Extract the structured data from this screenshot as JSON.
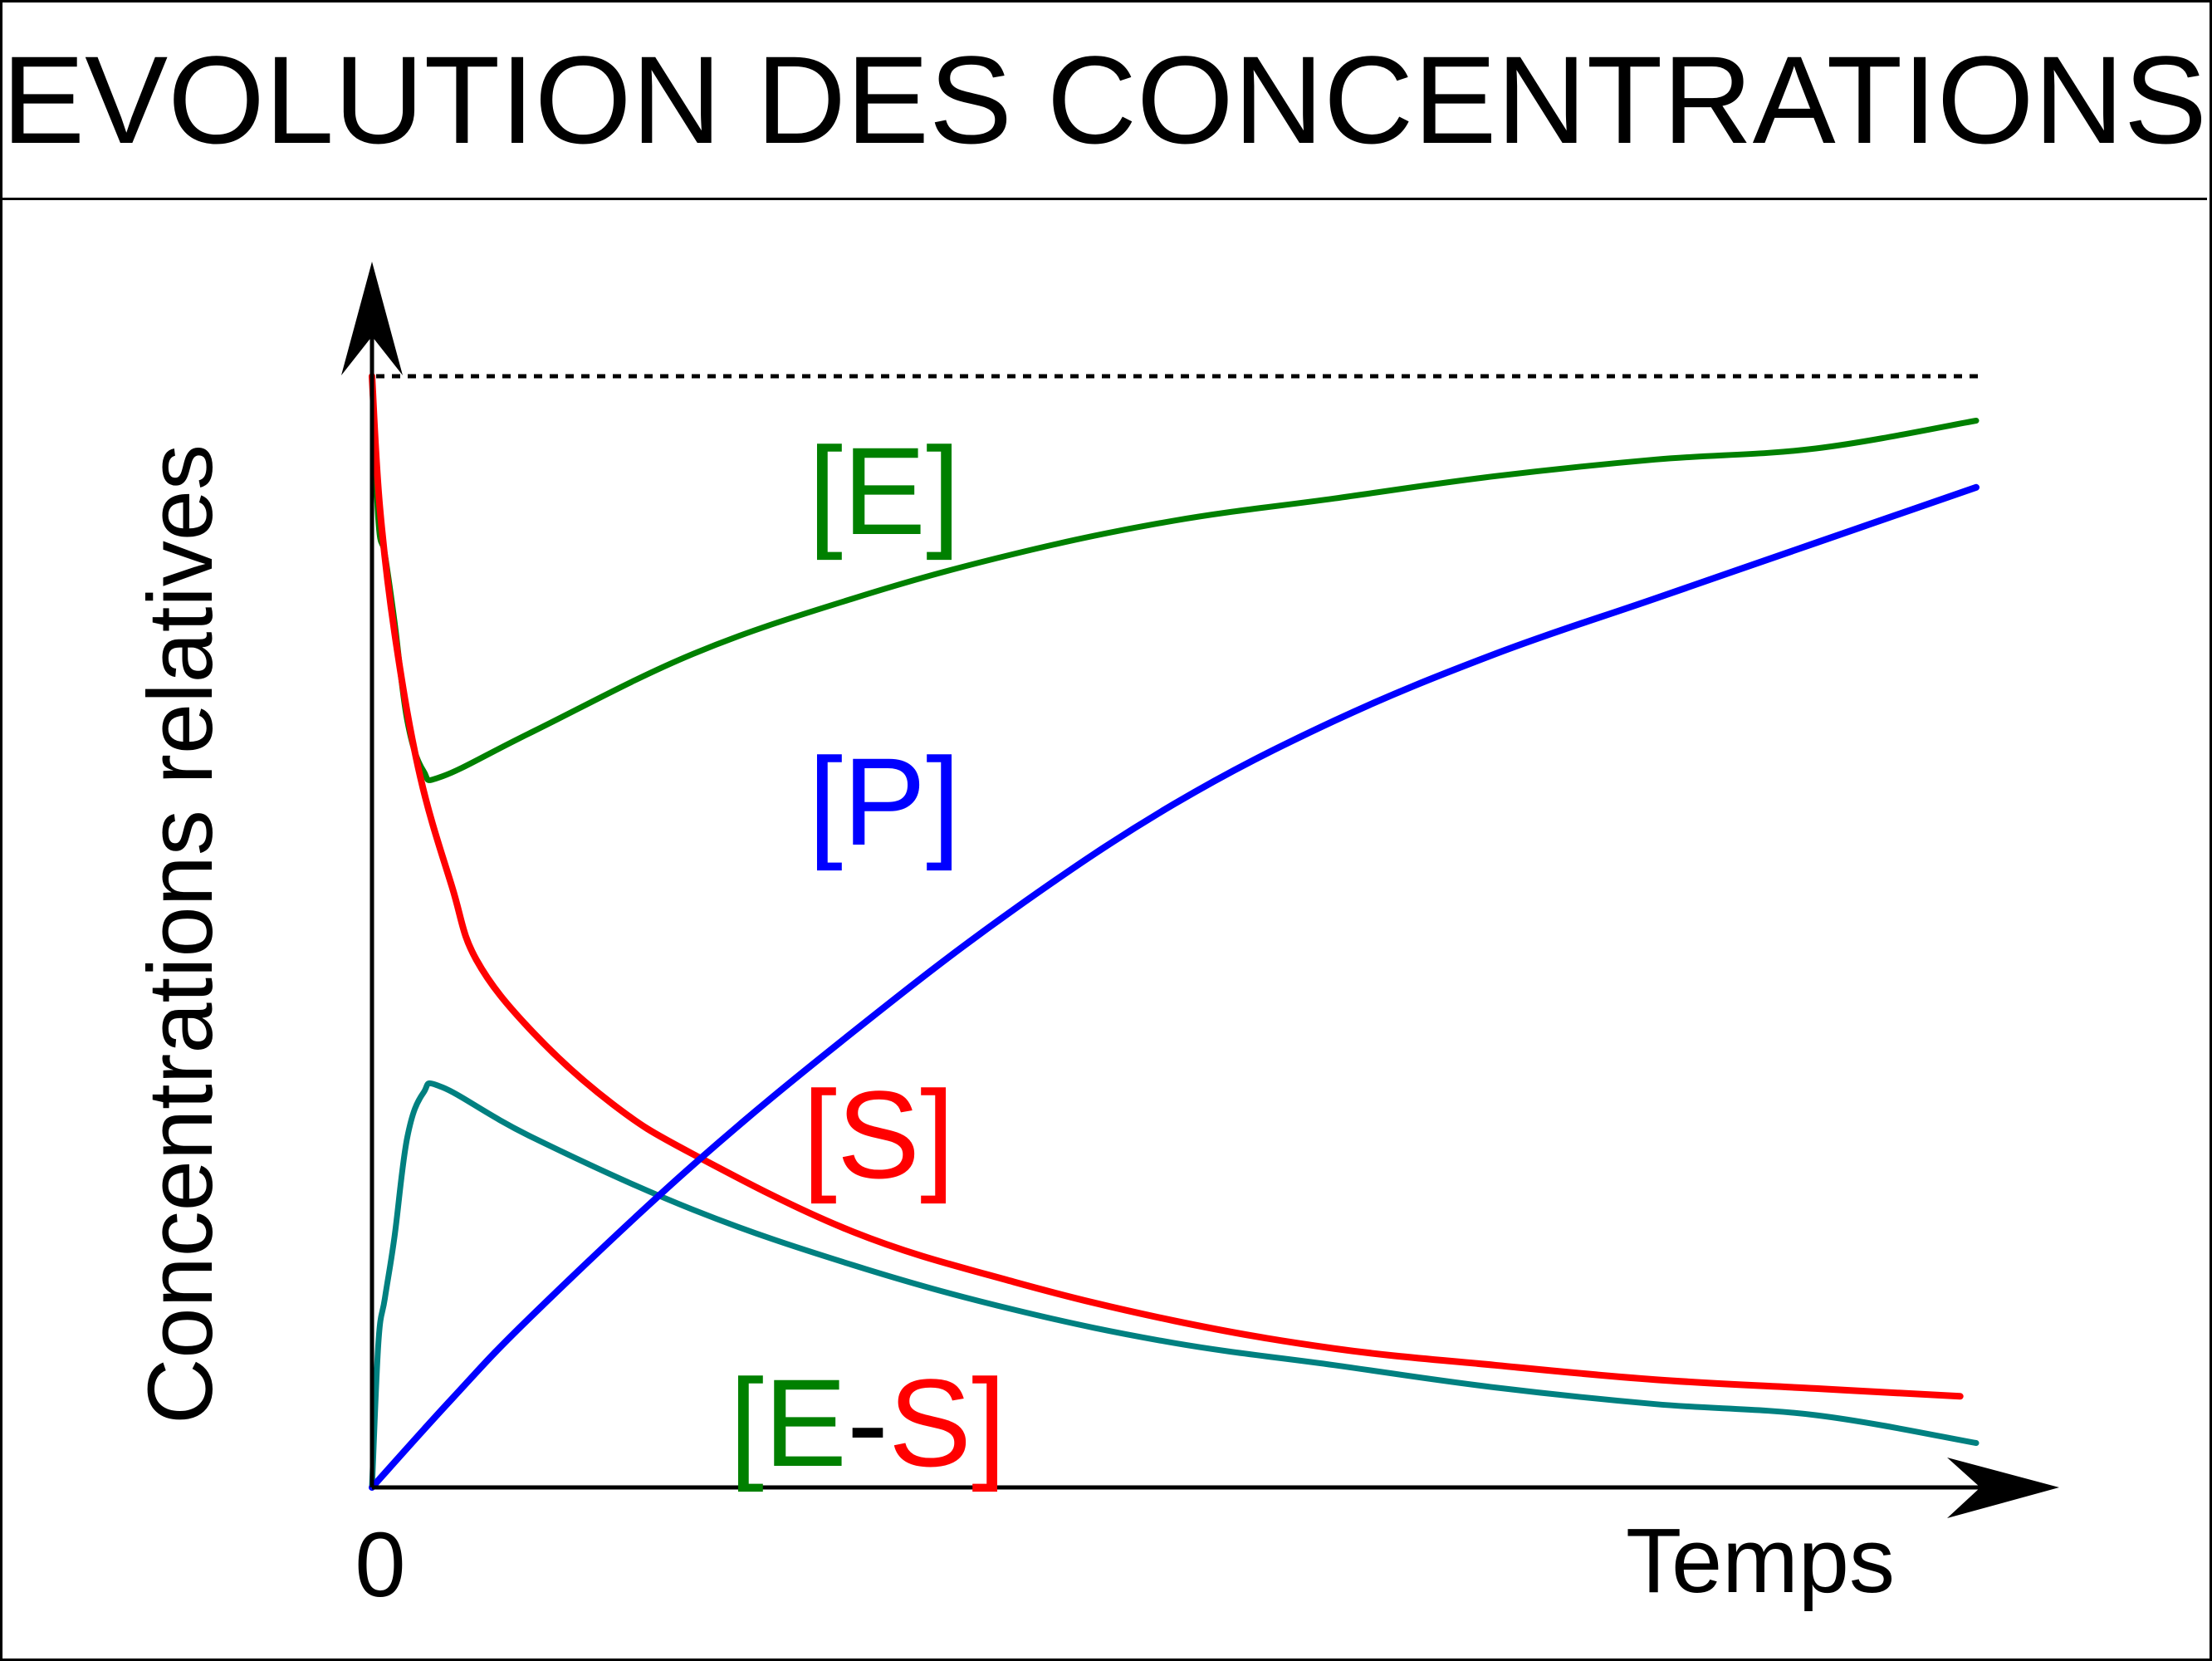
{
  "chart_data": {
    "type": "line",
    "title": "EVOLUTION DES CONCENTRATIONS",
    "xlabel": "Temps",
    "ylabel": "Concentrations relatives",
    "x_tick_labels": [
      "0"
    ],
    "xlim": [
      0,
      1.0
    ],
    "ylim": [
      0,
      1.0
    ],
    "reference_line": {
      "y": 1.0,
      "style": "dotted",
      "color": "#000000"
    },
    "legend_placement": "inline labels",
    "grid": false,
    "series": [
      {
        "name": "[E]",
        "color": "#008000",
        "label_parts": [
          {
            "text": "[E]",
            "color": "#008000"
          }
        ],
        "points": [
          [
            0,
            1.0
          ],
          [
            0.004,
            0.87
          ],
          [
            0.008,
            0.84
          ],
          [
            0.014,
            0.78
          ],
          [
            0.022,
            0.69
          ],
          [
            0.032,
            0.645
          ],
          [
            0.044,
            0.64
          ],
          [
            0.1,
            0.68
          ],
          [
            0.2,
            0.75
          ],
          [
            0.3,
            0.8
          ],
          [
            0.4,
            0.84
          ],
          [
            0.5,
            0.87
          ],
          [
            0.6,
            0.89
          ],
          [
            0.7,
            0.91
          ],
          [
            0.8,
            0.925
          ],
          [
            0.9,
            0.935
          ],
          [
            1.0,
            0.96
          ]
        ]
      },
      {
        "name": "[P]",
        "color": "#0000ff",
        "label_parts": [
          {
            "text": "[P]",
            "color": "#0000ff"
          }
        ],
        "points": [
          [
            0,
            0.0
          ],
          [
            0.05,
            0.08
          ],
          [
            0.1,
            0.155
          ],
          [
            0.2,
            0.29
          ],
          [
            0.3,
            0.41
          ],
          [
            0.4,
            0.52
          ],
          [
            0.5,
            0.615
          ],
          [
            0.6,
            0.69
          ],
          [
            0.7,
            0.75
          ],
          [
            0.8,
            0.8
          ],
          [
            0.9,
            0.85
          ],
          [
            1.0,
            0.9
          ]
        ]
      },
      {
        "name": "[S]",
        "color": "#ff0000",
        "label_parts": [
          {
            "text": "[S]",
            "color": "#ff0000"
          }
        ],
        "points": [
          [
            0,
            1.0
          ],
          [
            0.005,
            0.88
          ],
          [
            0.015,
            0.76
          ],
          [
            0.03,
            0.64
          ],
          [
            0.05,
            0.54
          ],
          [
            0.065,
            0.475
          ],
          [
            0.1,
            0.41
          ],
          [
            0.15,
            0.345
          ],
          [
            0.2,
            0.3
          ],
          [
            0.3,
            0.23
          ],
          [
            0.4,
            0.185
          ],
          [
            0.5,
            0.15
          ],
          [
            0.6,
            0.125
          ],
          [
            0.7,
            0.11
          ],
          [
            0.8,
            0.097
          ],
          [
            0.9,
            0.089
          ],
          [
            0.99,
            0.082
          ]
        ]
      },
      {
        "name": "[E-S]",
        "color": "#008080",
        "label_parts": [
          {
            "text": "[E",
            "color": "#008000"
          },
          {
            "text": "-",
            "color": "#000000"
          },
          {
            "text": "S]",
            "color": "#ff0000"
          }
        ],
        "points": [
          [
            0,
            0.0
          ],
          [
            0.004,
            0.13
          ],
          [
            0.008,
            0.17
          ],
          [
            0.014,
            0.225
          ],
          [
            0.022,
            0.315
          ],
          [
            0.032,
            0.355
          ],
          [
            0.044,
            0.36
          ],
          [
            0.1,
            0.315
          ],
          [
            0.2,
            0.25
          ],
          [
            0.3,
            0.2
          ],
          [
            0.4,
            0.16
          ],
          [
            0.5,
            0.13
          ],
          [
            0.6,
            0.11
          ],
          [
            0.7,
            0.09
          ],
          [
            0.8,
            0.075
          ],
          [
            0.9,
            0.065
          ],
          [
            1.0,
            0.04
          ]
        ]
      }
    ]
  }
}
